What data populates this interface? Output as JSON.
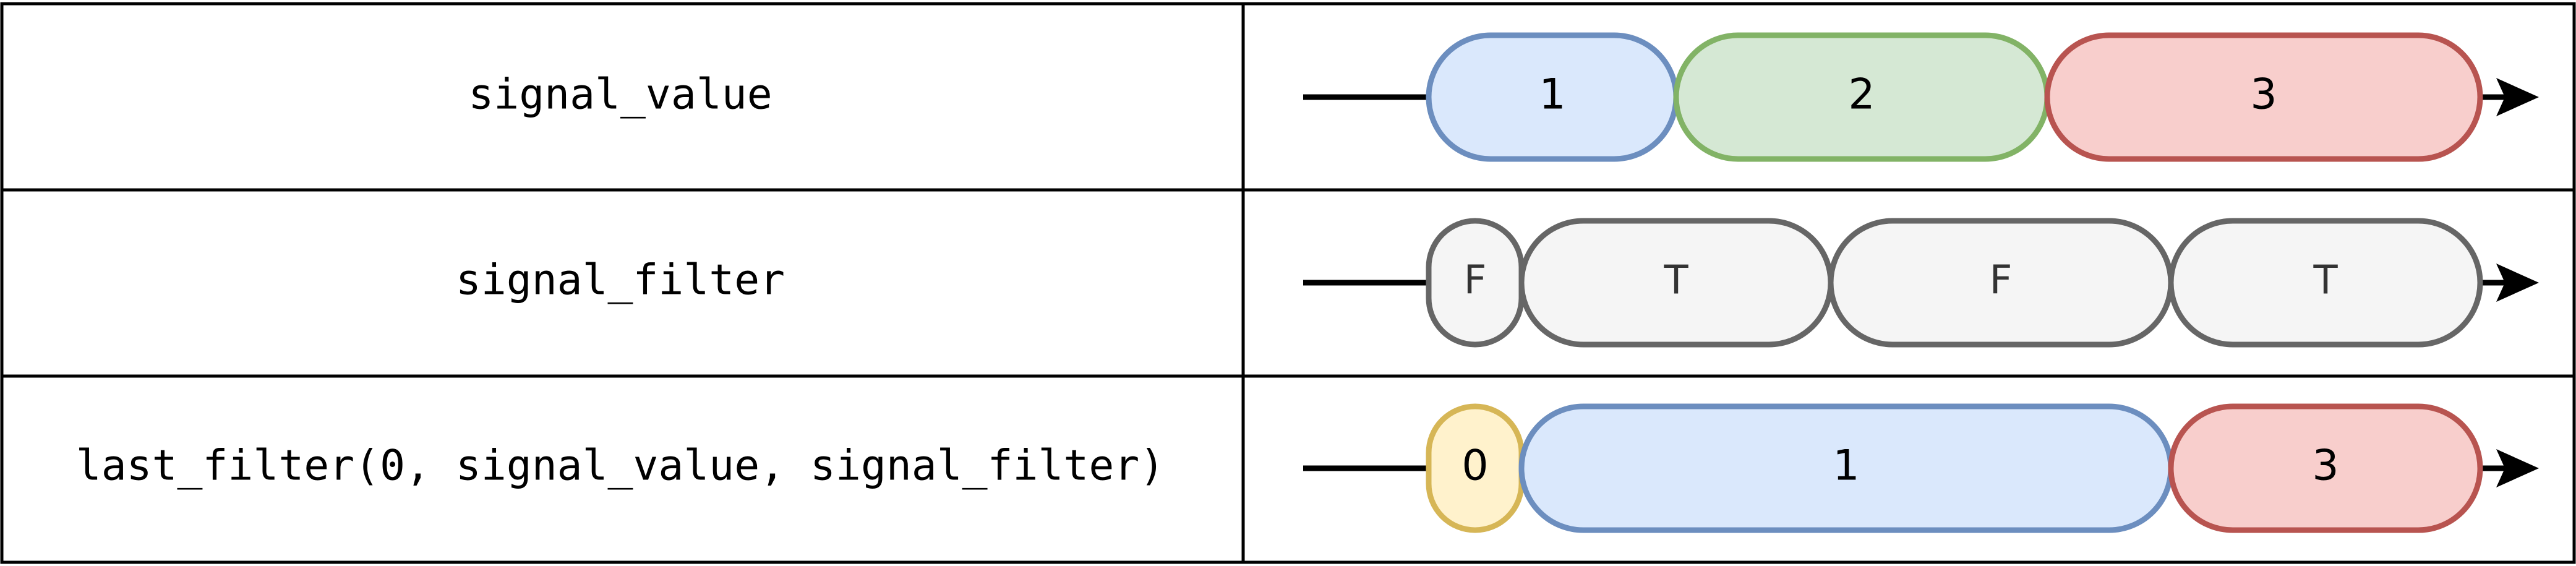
{
  "rows": [
    {
      "label": "signal_value",
      "segments": [
        {
          "text": "1",
          "fill": "#dae8fc",
          "stroke": "#6c8ebf"
        },
        {
          "text": "2",
          "fill": "#d5e8d4",
          "stroke": "#82b366"
        },
        {
          "text": "3",
          "fill": "#f8cecc",
          "stroke": "#b85450"
        }
      ]
    },
    {
      "label": "signal_filter",
      "segments": [
        {
          "text": "F",
          "fill": "#f5f5f5",
          "stroke": "#666666"
        },
        {
          "text": "T",
          "fill": "#f5f5f5",
          "stroke": "#666666"
        },
        {
          "text": "F",
          "fill": "#f5f5f5",
          "stroke": "#666666"
        },
        {
          "text": "T",
          "fill": "#f5f5f5",
          "stroke": "#666666"
        }
      ]
    },
    {
      "label": "last_filter(0, signal_value, signal_filter)",
      "segments": [
        {
          "text": "0",
          "fill": "#fff2cc",
          "stroke": "#d6b656"
        },
        {
          "text": "1",
          "fill": "#dae8fc",
          "stroke": "#6c8ebf"
        },
        {
          "text": "3",
          "fill": "#f8cecc",
          "stroke": "#b85450"
        }
      ]
    }
  ]
}
